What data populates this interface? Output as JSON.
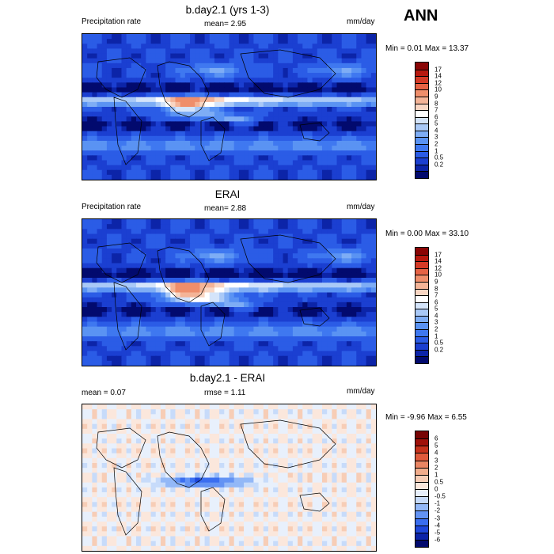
{
  "season": "ANN",
  "panels": [
    {
      "title": "b.day2.1 (yrs 1-3)",
      "left": "Precipitation rate",
      "center": "mean=   2.95",
      "right": "mm/day",
      "minmax": "Min =   0.01 Max =  13.37",
      "colorbar": [
        "17",
        "14",
        "12",
        "10",
        "9",
        "8",
        "7",
        "6",
        "5",
        "4",
        "3",
        "2",
        "1",
        "0.5",
        "0.2"
      ]
    },
    {
      "title": "ERAI",
      "left": "Precipitation rate",
      "center": "mean=   2.88",
      "right": "mm/day",
      "minmax": "Min =   0.00 Max =  33.10",
      "colorbar": [
        "17",
        "14",
        "12",
        "10",
        "9",
        "8",
        "7",
        "6",
        "5",
        "4",
        "3",
        "2",
        "1",
        "0.5",
        "0.2"
      ]
    },
    {
      "title": "b.day2.1 - ERAI",
      "left": "mean =   0.07",
      "center": "rmse =   1.11",
      "right": "mm/day",
      "minmax": "Min =  -9.96 Max =   6.55",
      "colorbar": [
        "6",
        "5",
        "4",
        "3",
        "2",
        "1",
        "0.5",
        "0",
        "-0.5",
        "-1",
        "-2",
        "-3",
        "-4",
        "-5",
        "-6"
      ]
    }
  ],
  "colors": {
    "abs": [
      "#020a6e",
      "#0c24a8",
      "#1b3fd1",
      "#2b5ce6",
      "#3f78f0",
      "#5a93f3",
      "#7eadf5",
      "#a9c9f7",
      "#d4e4fa",
      "#ffffff",
      "#f9d6c3",
      "#f4b497",
      "#ef8e6b",
      "#e66345",
      "#d43a26",
      "#b8190f",
      "#8a0505"
    ],
    "diff": [
      "#020a6e",
      "#0c24a8",
      "#1f48db",
      "#3a6ef0",
      "#6393f4",
      "#93b8f7",
      "#c7dbfa",
      "#e8f0fc",
      "#fbe7dc",
      "#f7cdb6",
      "#f2ad8c",
      "#ea8563",
      "#df5a3c",
      "#c6321c",
      "#a0110a",
      "#780404"
    ]
  },
  "chart_data": [
    {
      "type": "heatmap",
      "title": "b.day2.1 (yrs 1-3)",
      "variable": "Precipitation rate",
      "units": "mm/day",
      "mean": 2.95,
      "min": 0.01,
      "max": 13.37,
      "colorbar_levels": [
        0.2,
        0.5,
        1,
        2,
        3,
        4,
        5,
        6,
        7,
        8,
        9,
        10,
        12,
        14,
        17
      ]
    },
    {
      "type": "heatmap",
      "title": "ERAI",
      "variable": "Precipitation rate",
      "units": "mm/day",
      "mean": 2.88,
      "min": 0.0,
      "max": 33.1,
      "colorbar_levels": [
        0.2,
        0.5,
        1,
        2,
        3,
        4,
        5,
        6,
        7,
        8,
        9,
        10,
        12,
        14,
        17
      ]
    },
    {
      "type": "heatmap",
      "title": "b.day2.1 - ERAI",
      "units": "mm/day",
      "mean": 0.07,
      "rmse": 1.11,
      "min": -9.96,
      "max": 6.55,
      "colorbar_levels": [
        -6,
        -5,
        -4,
        -3,
        -2,
        -1,
        -0.5,
        0,
        0.5,
        1,
        2,
        3,
        4,
        5,
        6
      ]
    }
  ]
}
